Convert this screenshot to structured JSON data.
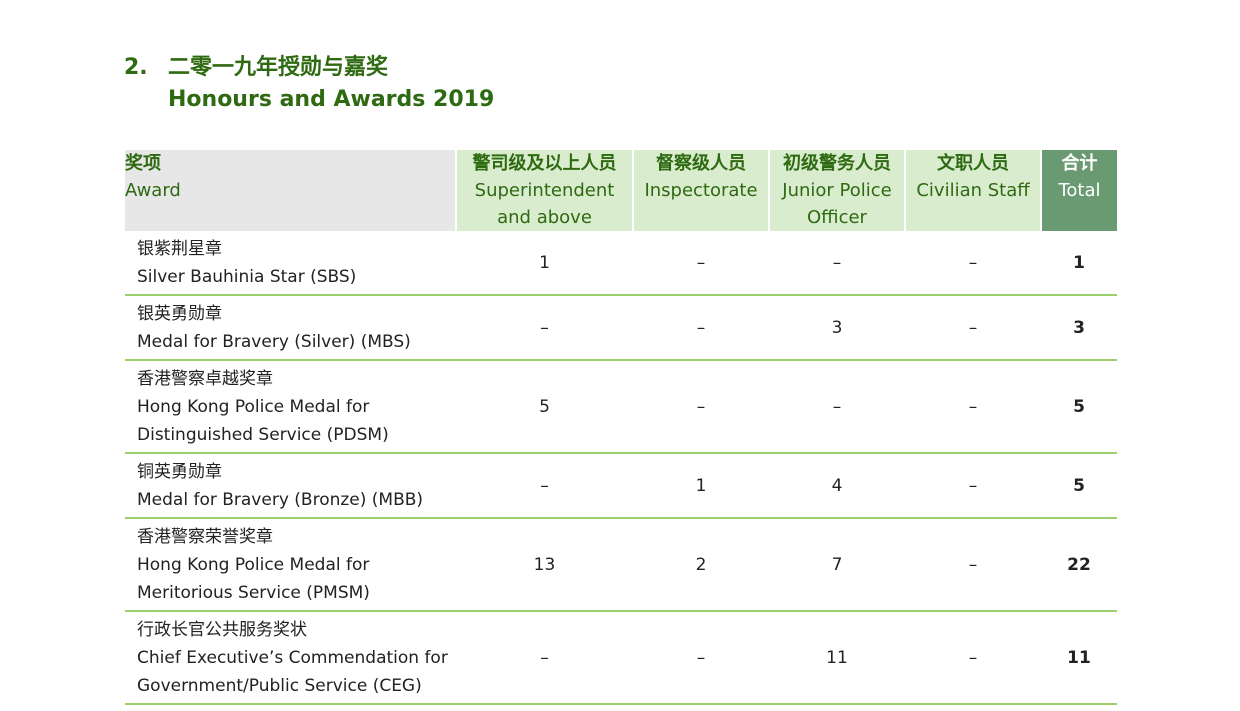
{
  "title": {
    "number": "2.",
    "zh": "二零一九年授勋与嘉奖",
    "en": "Honours and Awards 2019"
  },
  "table": {
    "headers": {
      "award": {
        "zh": "奖项",
        "en": "Award"
      },
      "superintendent": {
        "zh": "警司级及以上人员",
        "en1": "Superintendent",
        "en2": "and above"
      },
      "inspectorate": {
        "zh": "督察级人员",
        "en": "Inspectorate"
      },
      "junior": {
        "zh": "初级警务人员",
        "en1": "Junior Police",
        "en2": "Officer"
      },
      "civilian": {
        "zh": "文职人员",
        "en": "Civilian Staff"
      },
      "total": {
        "zh": "合计",
        "en": "Total"
      }
    },
    "rows": [
      {
        "zh": "银紫荆星章",
        "en": [
          "Silver Bauhinia Star (SBS)"
        ],
        "superintendent": "1",
        "inspectorate": "–",
        "junior": "–",
        "civilian": "–",
        "total": "1"
      },
      {
        "zh": "银英勇勋章",
        "en": [
          "Medal for Bravery (Silver) (MBS)"
        ],
        "superintendent": "–",
        "inspectorate": "–",
        "junior": "3",
        "civilian": "–",
        "total": "3"
      },
      {
        "zh": "香港警察卓越奖章",
        "en": [
          "Hong Kong Police Medal for",
          "Distinguished Service (PDSM)"
        ],
        "superintendent": "5",
        "inspectorate": "–",
        "junior": "–",
        "civilian": "–",
        "total": "5"
      },
      {
        "zh": "铜英勇勋章",
        "en": [
          "Medal for Bravery (Bronze) (MBB)"
        ],
        "superintendent": "–",
        "inspectorate": "1",
        "junior": "4",
        "civilian": "–",
        "total": "5"
      },
      {
        "zh": "香港警察荣誉奖章",
        "en": [
          "Hong Kong Police Medal for",
          "Meritorious Service (PMSM)"
        ],
        "superintendent": "13",
        "inspectorate": "2",
        "junior": "7",
        "civilian": "–",
        "total": "22"
      },
      {
        "zh": "行政长官公共服务奖状",
        "en": [
          "Chief Executive’s Commendation for",
          "Government/Public Service (CEG)"
        ],
        "superintendent": "–",
        "inspectorate": "–",
        "junior": "11",
        "civilian": "–",
        "total": "11"
      }
    ]
  },
  "colors": {
    "title": "#2e6a12",
    "header_gray": "#e7e7e7",
    "header_green": "#d9ecce",
    "total_header": "#6a9a72",
    "row_rule": "#9bcf6b"
  }
}
